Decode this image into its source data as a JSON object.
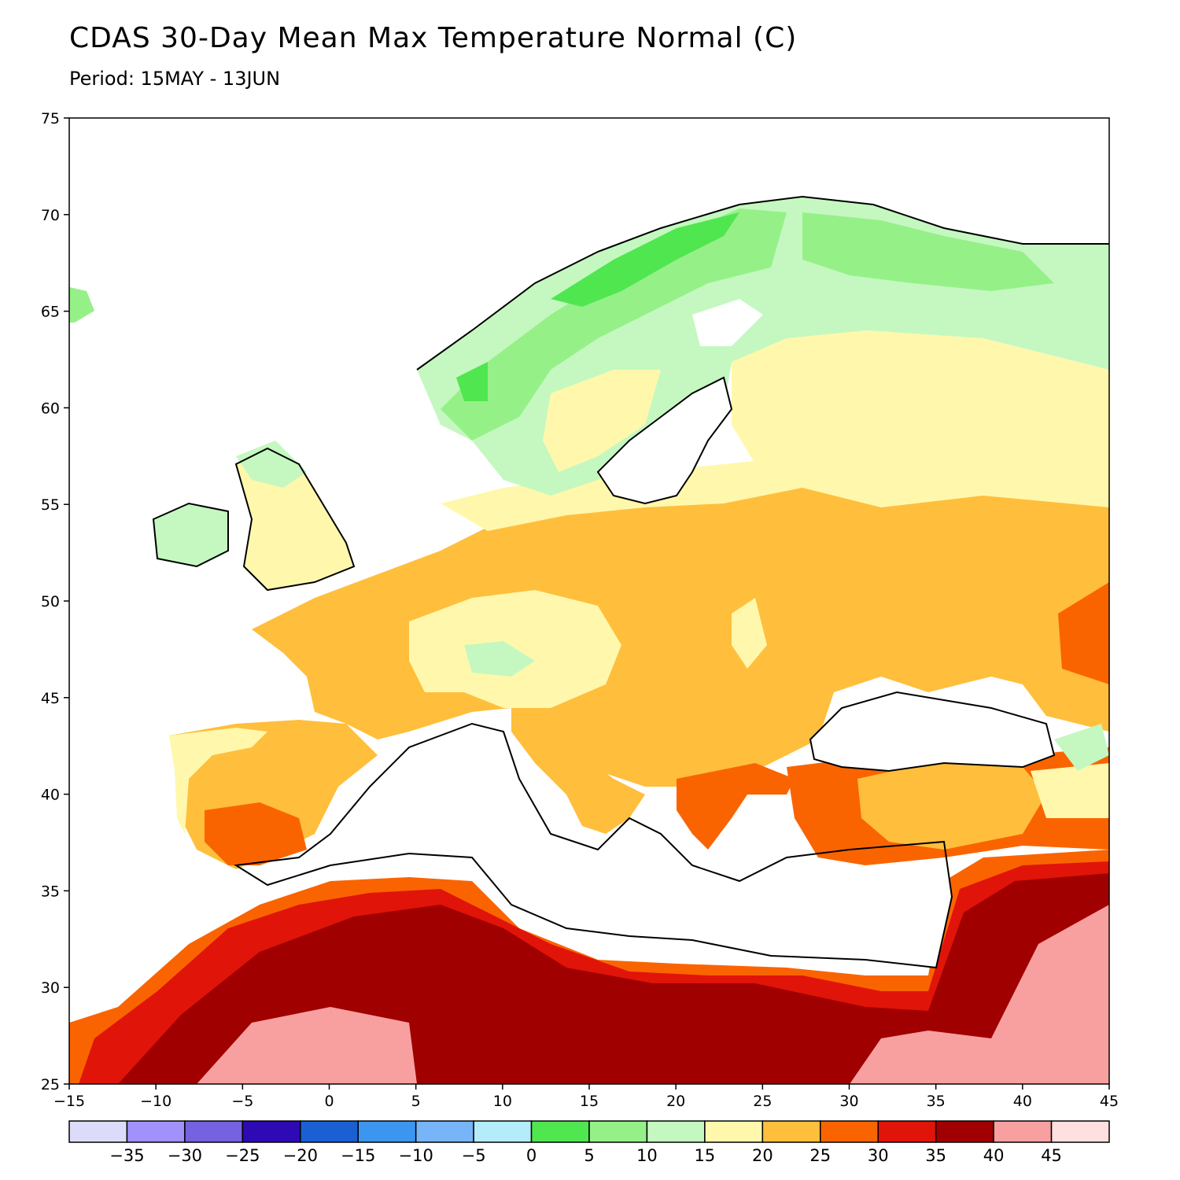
{
  "header": {
    "title": "CDAS 30-Day Mean Max Temperature Normal (C)",
    "subtitle": "Period: 15MAY - 13JUN"
  },
  "map": {
    "lon_range": [
      -15,
      45
    ],
    "lat_range": [
      25,
      75
    ],
    "lon_ticks": [
      "-15",
      "-10",
      "-5",
      "0",
      "5",
      "10",
      "15",
      "20",
      "25",
      "30",
      "35",
      "40",
      "45"
    ],
    "lat_ticks": [
      "25",
      "30",
      "35",
      "40",
      "45",
      "50",
      "55",
      "60",
      "65",
      "70",
      "75"
    ],
    "sea_color": "#ffffff"
  },
  "colorbar": {
    "colors": [
      "#dcdcfa",
      "#a092fa",
      "#7462e0",
      "#2e0ab4",
      "#1a5fd4",
      "#3c96f0",
      "#78b4f8",
      "#b4ecfa",
      "#50e650",
      "#96f088",
      "#c4f8c0",
      "#fff8ac",
      "#ffbe3c",
      "#fa6400",
      "#e01408",
      "#a00000",
      "#f8a0a0",
      "#ffe0e0"
    ],
    "labels": [
      "-35",
      "-30",
      "-25",
      "-20",
      "-15",
      "-10",
      "-5",
      "0",
      "5",
      "10",
      "15",
      "20",
      "25",
      "30",
      "35",
      "40",
      "45"
    ]
  }
}
